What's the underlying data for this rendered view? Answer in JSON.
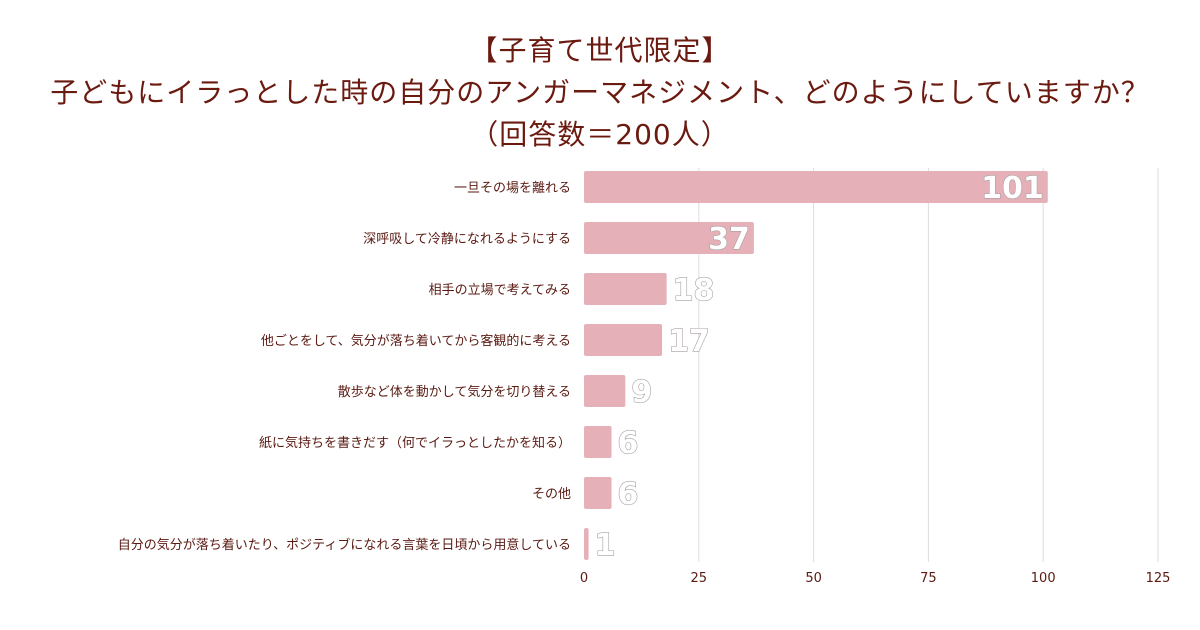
{
  "title": {
    "line1": "【子育て世代限定】",
    "line2": "子どもにイラっとした時の自分のアンガーマネジメント、どのようにしていますか？",
    "line3": "（回答数＝200人）"
  },
  "colors": {
    "bar": "#e6b0b9",
    "grid": "#dddddd",
    "title": "#6b1a10",
    "label": "#5a1a12"
  },
  "chart_data": {
    "type": "bar",
    "orientation": "horizontal",
    "categories": [
      "一旦その場を離れる",
      "深呼吸して冷静になれるようにする",
      "相手の立場で考えてみる",
      "他ごとをして、気分が落ち着いてから客観的に考える",
      "散歩など体を動かして気分を切り替える",
      "紙に気持ちを書きだす（何でイラっとしたかを知る）",
      "その他",
      "自分の気分が落ち着いたり、ポジティブになれる言葉を日頃から用意している"
    ],
    "values": [
      101,
      37,
      18,
      17,
      9,
      6,
      6,
      1
    ],
    "xlim": [
      0,
      125
    ],
    "xticks": [
      0,
      25,
      50,
      75,
      100,
      125
    ],
    "grid": true
  }
}
